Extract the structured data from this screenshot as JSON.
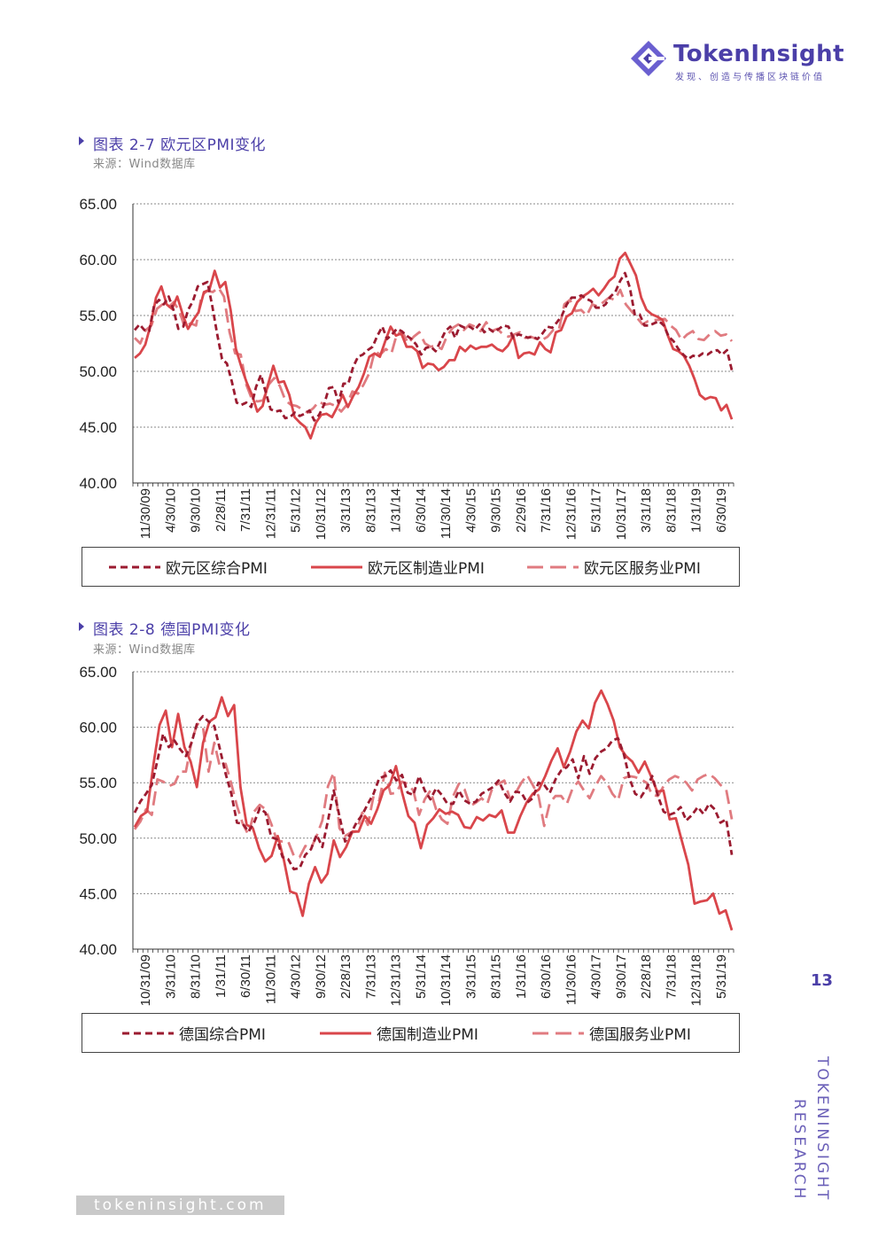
{
  "header": {
    "brand": "TokenInsight",
    "tagline": "发现、创造与传播区块链价值"
  },
  "figures": [
    {
      "title": "图表 2-7 欧元区PMI变化",
      "source": "来源：Wind数据库"
    },
    {
      "title": "图表 2-8 德国PMI变化",
      "source": "来源：Wind数据库"
    }
  ],
  "chart_data": [
    {
      "type": "line",
      "ylim": [
        40,
        65
      ],
      "yticks": [
        "65.00",
        "60.00",
        "55.00",
        "50.00",
        "45.00",
        "40.00"
      ],
      "xticks": [
        "11/30/09",
        "4/30/10",
        "9/30/10",
        "2/28/11",
        "7/31/11",
        "12/31/11",
        "5/31/12",
        "10/31/12",
        "3/31/13",
        "8/31/13",
        "1/31/14",
        "6/30/14",
        "11/30/14",
        "4/30/15",
        "9/30/15",
        "2/29/16",
        "7/31/16",
        "12/31/16",
        "5/31/17",
        "10/31/17",
        "3/31/18",
        "8/31/18",
        "1/31/19",
        "6/30/19"
      ],
      "grid": "horizontal-dotted",
      "series": [
        {
          "name": "欧元区综合PMI",
          "style": "dashed",
          "color": "#9b1b30",
          "values": [
            53.7,
            54.2,
            53.7,
            53.6,
            55.9,
            56.4,
            56.0,
            56.7,
            55.5,
            53.8,
            54.0,
            55.5,
            56.3,
            57.6,
            57.8,
            58.0,
            55.8,
            53.3,
            51.1,
            50.7,
            49.1,
            47.2,
            47.0,
            47.2,
            46.8,
            48.6,
            49.7,
            48.1,
            46.6,
            46.4,
            46.5,
            45.8,
            45.9,
            46.3,
            46.0,
            46.2,
            46.5,
            45.6,
            46.1,
            47.0,
            48.5,
            48.6,
            47.2,
            48.9,
            48.9,
            50.4,
            51.3,
            51.5,
            51.9,
            52.2,
            53.2,
            54.0,
            52.9,
            53.3,
            53.8,
            53.6,
            53.2,
            52.9,
            52.4,
            51.5,
            52.1,
            52.2,
            51.8,
            52.7,
            53.6,
            54.0,
            53.0,
            54.1,
            53.9,
            54.0,
            53.7,
            54.2,
            53.5,
            53.8,
            53.5,
            53.8,
            54.1,
            54.0,
            53.0,
            53.3,
            53.2,
            53.0,
            53.1,
            52.9,
            53.4,
            54.0,
            53.9,
            54.4,
            55.0,
            56.0,
            56.6,
            56.6,
            56.8,
            56.5,
            56.3,
            55.7,
            55.7,
            56.0,
            56.7,
            57.1,
            58.1,
            58.8,
            57.5,
            55.1,
            55.1,
            54.1,
            54.1,
            54.3,
            54.5,
            54.1,
            53.1,
            52.7,
            52.0,
            51.5,
            51.1,
            51.4,
            51.3,
            51.6,
            51.5,
            51.8,
            51.9,
            51.5,
            51.9,
            50.1
          ]
        },
        {
          "name": "欧元区制造业PMI",
          "style": "solid",
          "color": "#d9464b",
          "values": [
            51.2,
            51.6,
            52.4,
            54.2,
            56.6,
            57.6,
            56.0,
            55.6,
            56.7,
            55.1,
            53.8,
            54.6,
            55.3,
            57.1,
            57.3,
            59.0,
            57.5,
            58.0,
            55.5,
            52.0,
            50.4,
            49.0,
            47.9,
            46.4,
            46.9,
            48.8,
            50.5,
            49.0,
            49.1,
            47.9,
            45.9,
            45.4,
            45.0,
            44.0,
            45.4,
            46.1,
            46.2,
            45.9,
            46.8,
            47.9,
            46.8,
            47.8,
            48.6,
            49.8,
            51.3,
            51.6,
            51.3,
            52.7,
            54.0,
            53.2,
            53.4,
            52.2,
            52.2,
            51.8,
            50.3,
            50.7,
            50.6,
            50.1,
            50.4,
            51.0,
            51.0,
            52.2,
            51.8,
            52.3,
            52.0,
            52.2,
            52.2,
            52.4,
            52.0,
            51.8,
            52.3,
            53.2,
            51.2,
            51.6,
            51.7,
            51.5,
            52.6,
            52.0,
            51.7,
            53.5,
            53.7,
            54.9,
            55.2,
            56.2,
            56.7,
            57.0,
            57.4,
            56.8,
            57.4,
            58.1,
            58.5,
            60.1,
            60.6,
            59.6,
            58.6,
            56.6,
            55.5,
            55.1,
            54.9,
            54.6,
            53.2,
            52.0,
            51.8,
            51.4,
            50.5,
            49.3,
            47.9,
            47.5,
            47.7,
            47.6,
            46.5,
            47.0,
            45.7
          ]
        },
        {
          "name": "欧元区服务业PMI",
          "style": "long-dash",
          "color": "#e07b80",
          "values": [
            53.0,
            52.5,
            53.7,
            54.1,
            55.6,
            56.0,
            55.7,
            56.2,
            55.4,
            53.9,
            54.3,
            54.1,
            56.8,
            57.2,
            57.1,
            57.5,
            56.7,
            53.5,
            51.6,
            51.5,
            48.8,
            47.5,
            47.3,
            47.4,
            48.8,
            49.4,
            48.7,
            47.4,
            47.0,
            46.9,
            46.6,
            46.3,
            46.7,
            47.3,
            47.0,
            47.1,
            46.9,
            46.4,
            47.0,
            48.2,
            48.0,
            48.8,
            49.8,
            51.8,
            51.5,
            52.0,
            51.6,
            53.4,
            53.5,
            52.5,
            53.1,
            53.5,
            52.5,
            52.2,
            52.3,
            52.0,
            53.2,
            53.9,
            54.2,
            53.7,
            54.2,
            54.0,
            53.6,
            54.4,
            53.6,
            53.8,
            53.3,
            53.1,
            53.3,
            53.5,
            53.0,
            53.1,
            52.9,
            52.8,
            53.1,
            53.7,
            53.7,
            56.0,
            56.4,
            55.4,
            55.5,
            55.0,
            56.0,
            55.8,
            56.2,
            56.6,
            56.4,
            57.3,
            56.0,
            55.4,
            54.8,
            54.2,
            54.5,
            54.6,
            54.6,
            54.7,
            54.1,
            53.7,
            52.8,
            53.3,
            53.6,
            52.9,
            52.8,
            53.3,
            53.6,
            53.2,
            53.3,
            52.7
          ]
        }
      ]
    },
    {
      "type": "line",
      "ylim": [
        40,
        65
      ],
      "yticks": [
        "65.00",
        "60.00",
        "55.00",
        "50.00",
        "45.00",
        "40.00"
      ],
      "xticks": [
        "10/31/09",
        "3/31/10",
        "8/31/10",
        "1/31/11",
        "6/30/11",
        "11/30/11",
        "4/30/12",
        "9/30/12",
        "2/28/13",
        "7/31/13",
        "12/31/13",
        "5/31/14",
        "10/31/14",
        "3/31/15",
        "8/31/15",
        "1/31/16",
        "6/30/16",
        "11/30/16",
        "4/30/17",
        "9/30/17",
        "2/28/18",
        "7/31/18",
        "12/31/18",
        "5/31/19"
      ],
      "grid": "horizontal-dotted",
      "series": [
        {
          "name": "德国综合PMI",
          "style": "dashed",
          "color": "#9b1b30",
          "values": [
            52.3,
            53.3,
            54.0,
            54.8,
            57.0,
            59.4,
            58.2,
            58.8,
            58.0,
            57.4,
            58.6,
            60.4,
            61.0,
            60.5,
            60.1,
            58.0,
            55.8,
            54.0,
            51.4,
            51.3,
            50.6,
            51.4,
            52.7,
            52.3,
            50.1,
            49.9,
            48.3,
            48.1,
            47.2,
            47.3,
            48.5,
            49.0,
            50.3,
            49.2,
            51.6,
            54.3,
            52.0,
            49.7,
            50.4,
            51.4,
            52.1,
            53.1,
            54.0,
            55.4,
            55.6,
            56.1,
            55.2,
            55.7,
            54.1,
            53.9,
            55.6,
            54.3,
            53.5,
            54.5,
            53.9,
            53.1,
            53.1,
            54.3,
            53.4,
            53.1,
            53.3,
            54.0,
            54.3,
            54.6,
            55.2,
            54.1,
            53.3,
            54.2,
            54.1,
            53.2,
            53.6,
            55.0,
            54.8,
            54.1,
            55.3,
            56.1,
            56.4,
            57.1,
            55.4,
            57.4,
            55.8,
            57.2,
            57.8,
            58.1,
            58.8,
            59.0,
            57.6,
            55.4,
            54.0,
            53.7,
            54.5,
            55.6,
            53.8,
            52.4,
            52.1,
            52.3,
            52.8,
            51.6,
            52.1,
            52.8,
            52.2,
            53.1,
            52.6,
            51.4,
            51.7,
            48.5
          ]
        },
        {
          "name": "德国制造业PMI",
          "style": "solid",
          "color": "#d9464b",
          "values": [
            51.0,
            52.0,
            52.4,
            56.6,
            60.2,
            61.5,
            58.2,
            61.2,
            58.2,
            56.9,
            54.6,
            58.6,
            60.5,
            60.9,
            62.7,
            61.0,
            62.0,
            54.6,
            51.2,
            50.9,
            49.1,
            47.9,
            48.4,
            50.2,
            48.0,
            45.2,
            45.0,
            43.0,
            45.9,
            47.4,
            46.0,
            46.8,
            49.8,
            48.3,
            49.2,
            50.6,
            50.6,
            52.0,
            51.3,
            52.6,
            54.3,
            54.8,
            56.5,
            54.1,
            52.0,
            51.4,
            49.1,
            51.2,
            51.8,
            52.6,
            52.2,
            52.4,
            52.1,
            51.0,
            50.9,
            51.9,
            51.6,
            52.1,
            51.9,
            52.5,
            50.5,
            50.5,
            52.0,
            53.2,
            54.0,
            54.4,
            55.6,
            57.0,
            58.1,
            56.4,
            57.8,
            59.6,
            60.6,
            59.9,
            62.2,
            63.3,
            62.1,
            60.6,
            58.2,
            57.4,
            56.9,
            55.9,
            56.9,
            55.6,
            54.2,
            54.3,
            51.7,
            51.8,
            49.7,
            47.6,
            44.1,
            44.3,
            44.4,
            45.0,
            43.2,
            43.5,
            41.7
          ]
        },
        {
          "name": "德国服务业PMI",
          "style": "long-dash",
          "color": "#e07b80",
          "values": [
            50.8,
            51.5,
            52.6,
            52.1,
            55.3,
            55.1,
            54.7,
            54.9,
            56.0,
            56.0,
            58.7,
            60.3,
            60.1,
            56.0,
            58.6,
            56.4,
            56.7,
            54.9,
            52.9,
            51.3,
            50.3,
            52.4,
            53.0,
            52.6,
            51.3,
            49.8,
            49.7,
            49.7,
            48.4,
            48.3,
            49.3,
            49.1,
            50.2,
            51.6,
            54.7,
            55.9,
            50.9,
            50.2,
            50.5,
            50.6,
            52.3,
            51.2,
            53.8,
            53.4,
            55.9,
            54.0,
            54.1,
            55.1,
            54.9,
            54.3,
            52.1,
            53.5,
            54.3,
            52.6,
            51.7,
            51.3,
            53.8,
            54.9,
            54.4,
            52.9,
            53.2,
            53.6,
            53.1,
            54.7,
            54.9,
            55.2,
            53.5,
            54.1,
            55.0,
            55.7,
            54.8,
            53.8,
            51.1,
            53.2,
            53.8,
            53.8,
            53.1,
            54.5,
            55.1,
            54.3,
            53.6,
            54.7,
            55.6,
            55.0,
            54.0,
            53.4,
            55.4,
            55.6,
            55.5,
            55.3,
            55.0,
            53.9,
            53.8,
            54.7,
            55.3,
            55.6,
            55.4,
            55.0,
            54.3,
            55.3,
            55.6,
            55.8,
            55.4,
            54.8,
            54.4,
            51.7
          ]
        }
      ]
    }
  ],
  "legends": [
    {
      "items": [
        {
          "label": "欧元区综合PMI"
        },
        {
          "label": "欧元区制造业PMI"
        },
        {
          "label": "欧元区服务业PMI"
        }
      ]
    },
    {
      "items": [
        {
          "label": "德国综合PMI"
        },
        {
          "label": "德国制造业PMI"
        },
        {
          "label": "德国服务业PMI"
        }
      ]
    }
  ],
  "footer": {
    "page_number": "13",
    "side_text_1": "TOKENINSIGHT",
    "side_text_2": "RESEARCH",
    "website": "tokeninsight.com"
  }
}
